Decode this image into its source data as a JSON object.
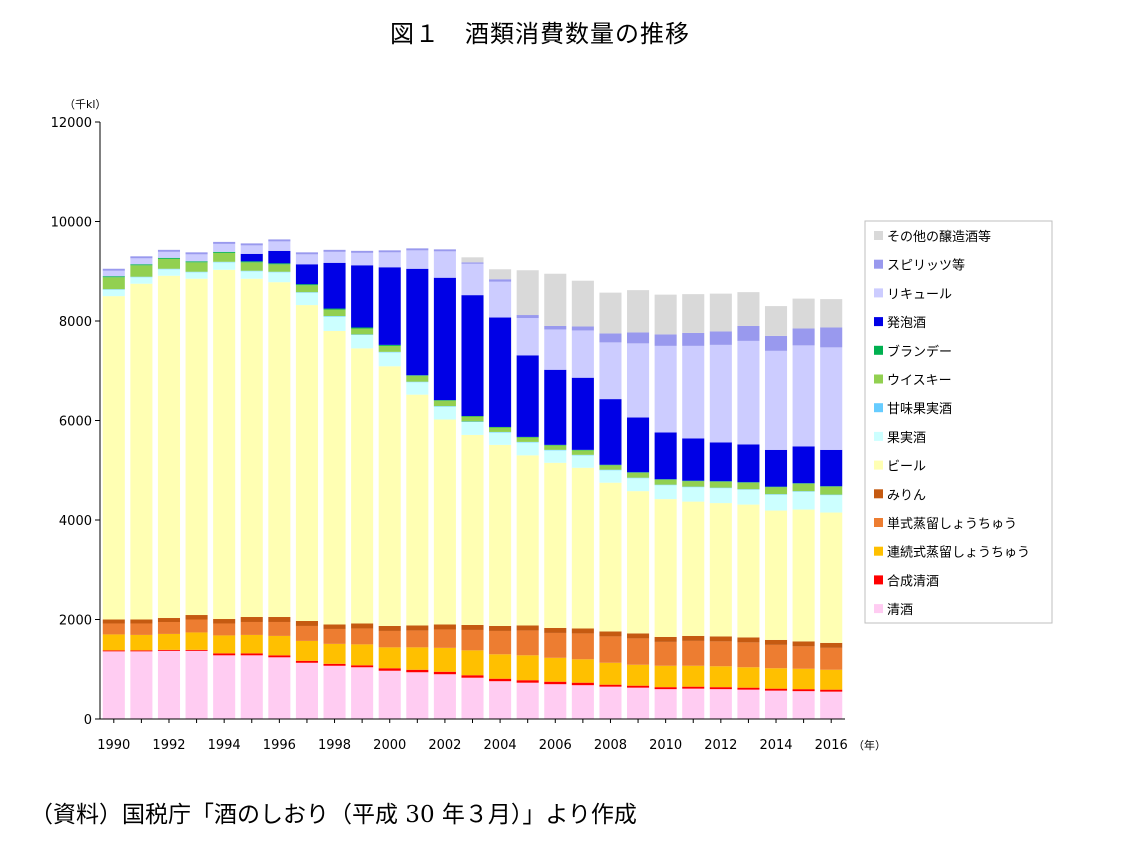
{
  "title": "図１　酒類消費数量の推移",
  "source": "（資料）国税庁「酒のしおり（平成 30 年３月）」より作成",
  "chart_data": {
    "type": "bar",
    "stacked": true,
    "y_unit_label": "（千kl）",
    "x_unit_label": "（年）",
    "ylim": [
      0,
      12000
    ],
    "y_ticks": [
      "0",
      "2000",
      "4000",
      "6000",
      "8000",
      "10000",
      "12000"
    ],
    "x_tick_labels": [
      "1990",
      "1992",
      "1994",
      "1996",
      "1998",
      "2000",
      "2002",
      "2004",
      "2006",
      "2008",
      "2010",
      "2012",
      "2014",
      "2016"
    ],
    "categories": [
      1990,
      1991,
      1992,
      1993,
      1994,
      1995,
      1996,
      1997,
      1998,
      1999,
      2000,
      2001,
      2002,
      2003,
      2004,
      2005,
      2006,
      2007,
      2008,
      2009,
      2010,
      2011,
      2012,
      2013,
      2014,
      2015,
      2016
    ],
    "legend_position": "right",
    "grid": false,
    "series": [
      {
        "name": "清酒",
        "color": "#ffccf2",
        "values": [
          1360,
          1360,
          1370,
          1370,
          1280,
          1280,
          1240,
          1130,
          1070,
          1040,
          970,
          940,
          900,
          830,
          760,
          730,
          700,
          680,
          650,
          630,
          600,
          610,
          600,
          590,
          570,
          560,
          550
        ]
      },
      {
        "name": "合成清酒",
        "color": "#ff0000",
        "values": [
          20,
          20,
          20,
          20,
          40,
          40,
          40,
          40,
          40,
          40,
          50,
          50,
          50,
          50,
          50,
          50,
          50,
          50,
          40,
          40,
          40,
          40,
          40,
          40,
          40,
          40,
          40
        ]
      },
      {
        "name": "連続式蒸留しょうちゅう",
        "color": "#ffc000",
        "values": [
          320,
          310,
          320,
          350,
          360,
          370,
          390,
          400,
          400,
          420,
          420,
          450,
          480,
          500,
          490,
          500,
          480,
          470,
          440,
          420,
          430,
          420,
          420,
          410,
          410,
          410,
          400
        ]
      },
      {
        "name": "単式蒸留しょうちゅう",
        "color": "#ed7d31",
        "values": [
          220,
          230,
          240,
          260,
          240,
          260,
          280,
          300,
          300,
          320,
          330,
          340,
          370,
          410,
          470,
          500,
          500,
          520,
          530,
          530,
          480,
          500,
          500,
          500,
          470,
          450,
          440
        ]
      },
      {
        "name": "みりん",
        "color": "#c55a11",
        "values": [
          80,
          80,
          80,
          90,
          90,
          100,
          100,
          100,
          90,
          100,
          100,
          100,
          100,
          100,
          100,
          100,
          100,
          100,
          100,
          100,
          100,
          100,
          100,
          100,
          100,
          100,
          100
        ]
      },
      {
        "name": "ビール",
        "color": "#ffffb3",
        "values": [
          6500,
          6750,
          6880,
          6760,
          7020,
          6800,
          6730,
          6350,
          5900,
          5530,
          5220,
          4640,
          4120,
          3820,
          3640,
          3420,
          3320,
          3230,
          2990,
          2860,
          2770,
          2700,
          2680,
          2670,
          2600,
          2650,
          2620
        ]
      },
      {
        "name": "果実酒",
        "color": "#ccffff",
        "values": [
          130,
          130,
          130,
          130,
          150,
          150,
          200,
          250,
          290,
          270,
          280,
          250,
          260,
          260,
          250,
          260,
          250,
          250,
          250,
          260,
          280,
          290,
          300,
          300,
          320,
          360,
          350
        ]
      },
      {
        "name": "甘味果実酒",
        "color": "#66ccff",
        "values": [
          10,
          10,
          10,
          10,
          10,
          10,
          10,
          10,
          10,
          10,
          10,
          10,
          10,
          10,
          10,
          10,
          10,
          10,
          10,
          10,
          10,
          10,
          10,
          10,
          10,
          10,
          10
        ]
      },
      {
        "name": "ウイスキー",
        "color": "#92d050",
        "values": [
          240,
          230,
          200,
          190,
          180,
          170,
          150,
          140,
          130,
          120,
          120,
          120,
          110,
          100,
          90,
          90,
          90,
          90,
          90,
          100,
          100,
          110,
          120,
          130,
          140,
          150,
          160
        ]
      },
      {
        "name": "ブランデー",
        "color": "#00b050",
        "values": [
          20,
          20,
          20,
          20,
          20,
          20,
          20,
          20,
          20,
          20,
          20,
          10,
          10,
          10,
          10,
          10,
          10,
          10,
          10,
          10,
          10,
          10,
          10,
          10,
          10,
          10,
          10
        ]
      },
      {
        "name": "発泡酒",
        "color": "#0000e6",
        "values": [
          0,
          0,
          0,
          0,
          0,
          150,
          250,
          400,
          920,
          1250,
          1560,
          2140,
          2460,
          2430,
          2200,
          1640,
          1510,
          1450,
          1320,
          1100,
          940,
          850,
          780,
          760,
          740,
          740,
          730
        ]
      },
      {
        "name": "リキュール",
        "color": "#ccccff",
        "values": [
          110,
          120,
          120,
          140,
          160,
          170,
          190,
          200,
          220,
          250,
          300,
          370,
          530,
          630,
          720,
          750,
          810,
          950,
          1140,
          1490,
          1740,
          1860,
          1960,
          2080,
          1990,
          2030,
          2060
        ]
      },
      {
        "name": "スピリッツ等",
        "color": "#9999ee",
        "values": [
          40,
          40,
          40,
          40,
          40,
          40,
          40,
          40,
          40,
          40,
          40,
          40,
          40,
          30,
          50,
          60,
          70,
          80,
          180,
          220,
          230,
          260,
          270,
          300,
          300,
          340,
          400
        ]
      },
      {
        "name": "その他の醸造酒等",
        "color": "#d9d9d9",
        "values": [
          0,
          0,
          0,
          0,
          0,
          0,
          0,
          0,
          0,
          0,
          0,
          0,
          0,
          100,
          200,
          900,
          1050,
          920,
          820,
          850,
          800,
          780,
          760,
          680,
          600,
          600,
          570
        ]
      }
    ]
  }
}
